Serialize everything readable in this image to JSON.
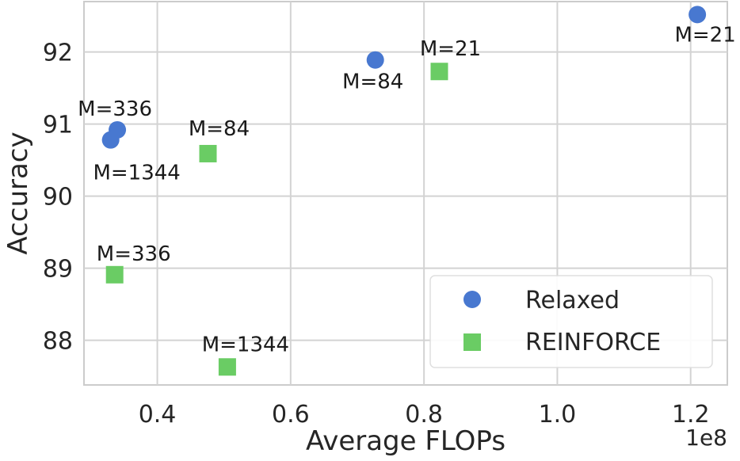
{
  "chart_data": {
    "type": "scatter",
    "title": "",
    "xlabel": "Average FLOPs",
    "ylabel": "Accuracy",
    "x_offset_label": "1e8",
    "xlim": [
      0.29,
      1.255
    ],
    "ylim": [
      87.38,
      92.7
    ],
    "x_ticks": [
      0.4,
      0.6,
      0.8,
      1.0,
      1.2
    ],
    "x_tick_labels": [
      "0.4",
      "0.6",
      "0.8",
      "1.0",
      "1.2"
    ],
    "y_ticks": [
      88,
      89,
      90,
      91,
      92
    ],
    "y_tick_labels": [
      "88",
      "89",
      "90",
      "91",
      "92"
    ],
    "grid": true,
    "legend_position": "bottom-right",
    "series": [
      {
        "name": "Relaxed",
        "marker": "circle",
        "color": "#4878d0",
        "points": [
          {
            "x": 1.21,
            "y": 92.52,
            "label": "M=21"
          },
          {
            "x": 0.727,
            "y": 91.89,
            "label": "M=84"
          },
          {
            "x": 0.34,
            "y": 90.92,
            "label": "M=336"
          },
          {
            "x": 0.33,
            "y": 90.78,
            "label": "M=1344"
          }
        ]
      },
      {
        "name": "REINFORCE",
        "marker": "square",
        "color": "#6acc64",
        "points": [
          {
            "x": 0.823,
            "y": 91.73,
            "label": "M=21"
          },
          {
            "x": 0.476,
            "y": 90.59,
            "label": "M=84"
          },
          {
            "x": 0.336,
            "y": 88.91,
            "label": "M=336"
          },
          {
            "x": 0.505,
            "y": 87.63,
            "label": "M=1344"
          }
        ]
      }
    ]
  }
}
